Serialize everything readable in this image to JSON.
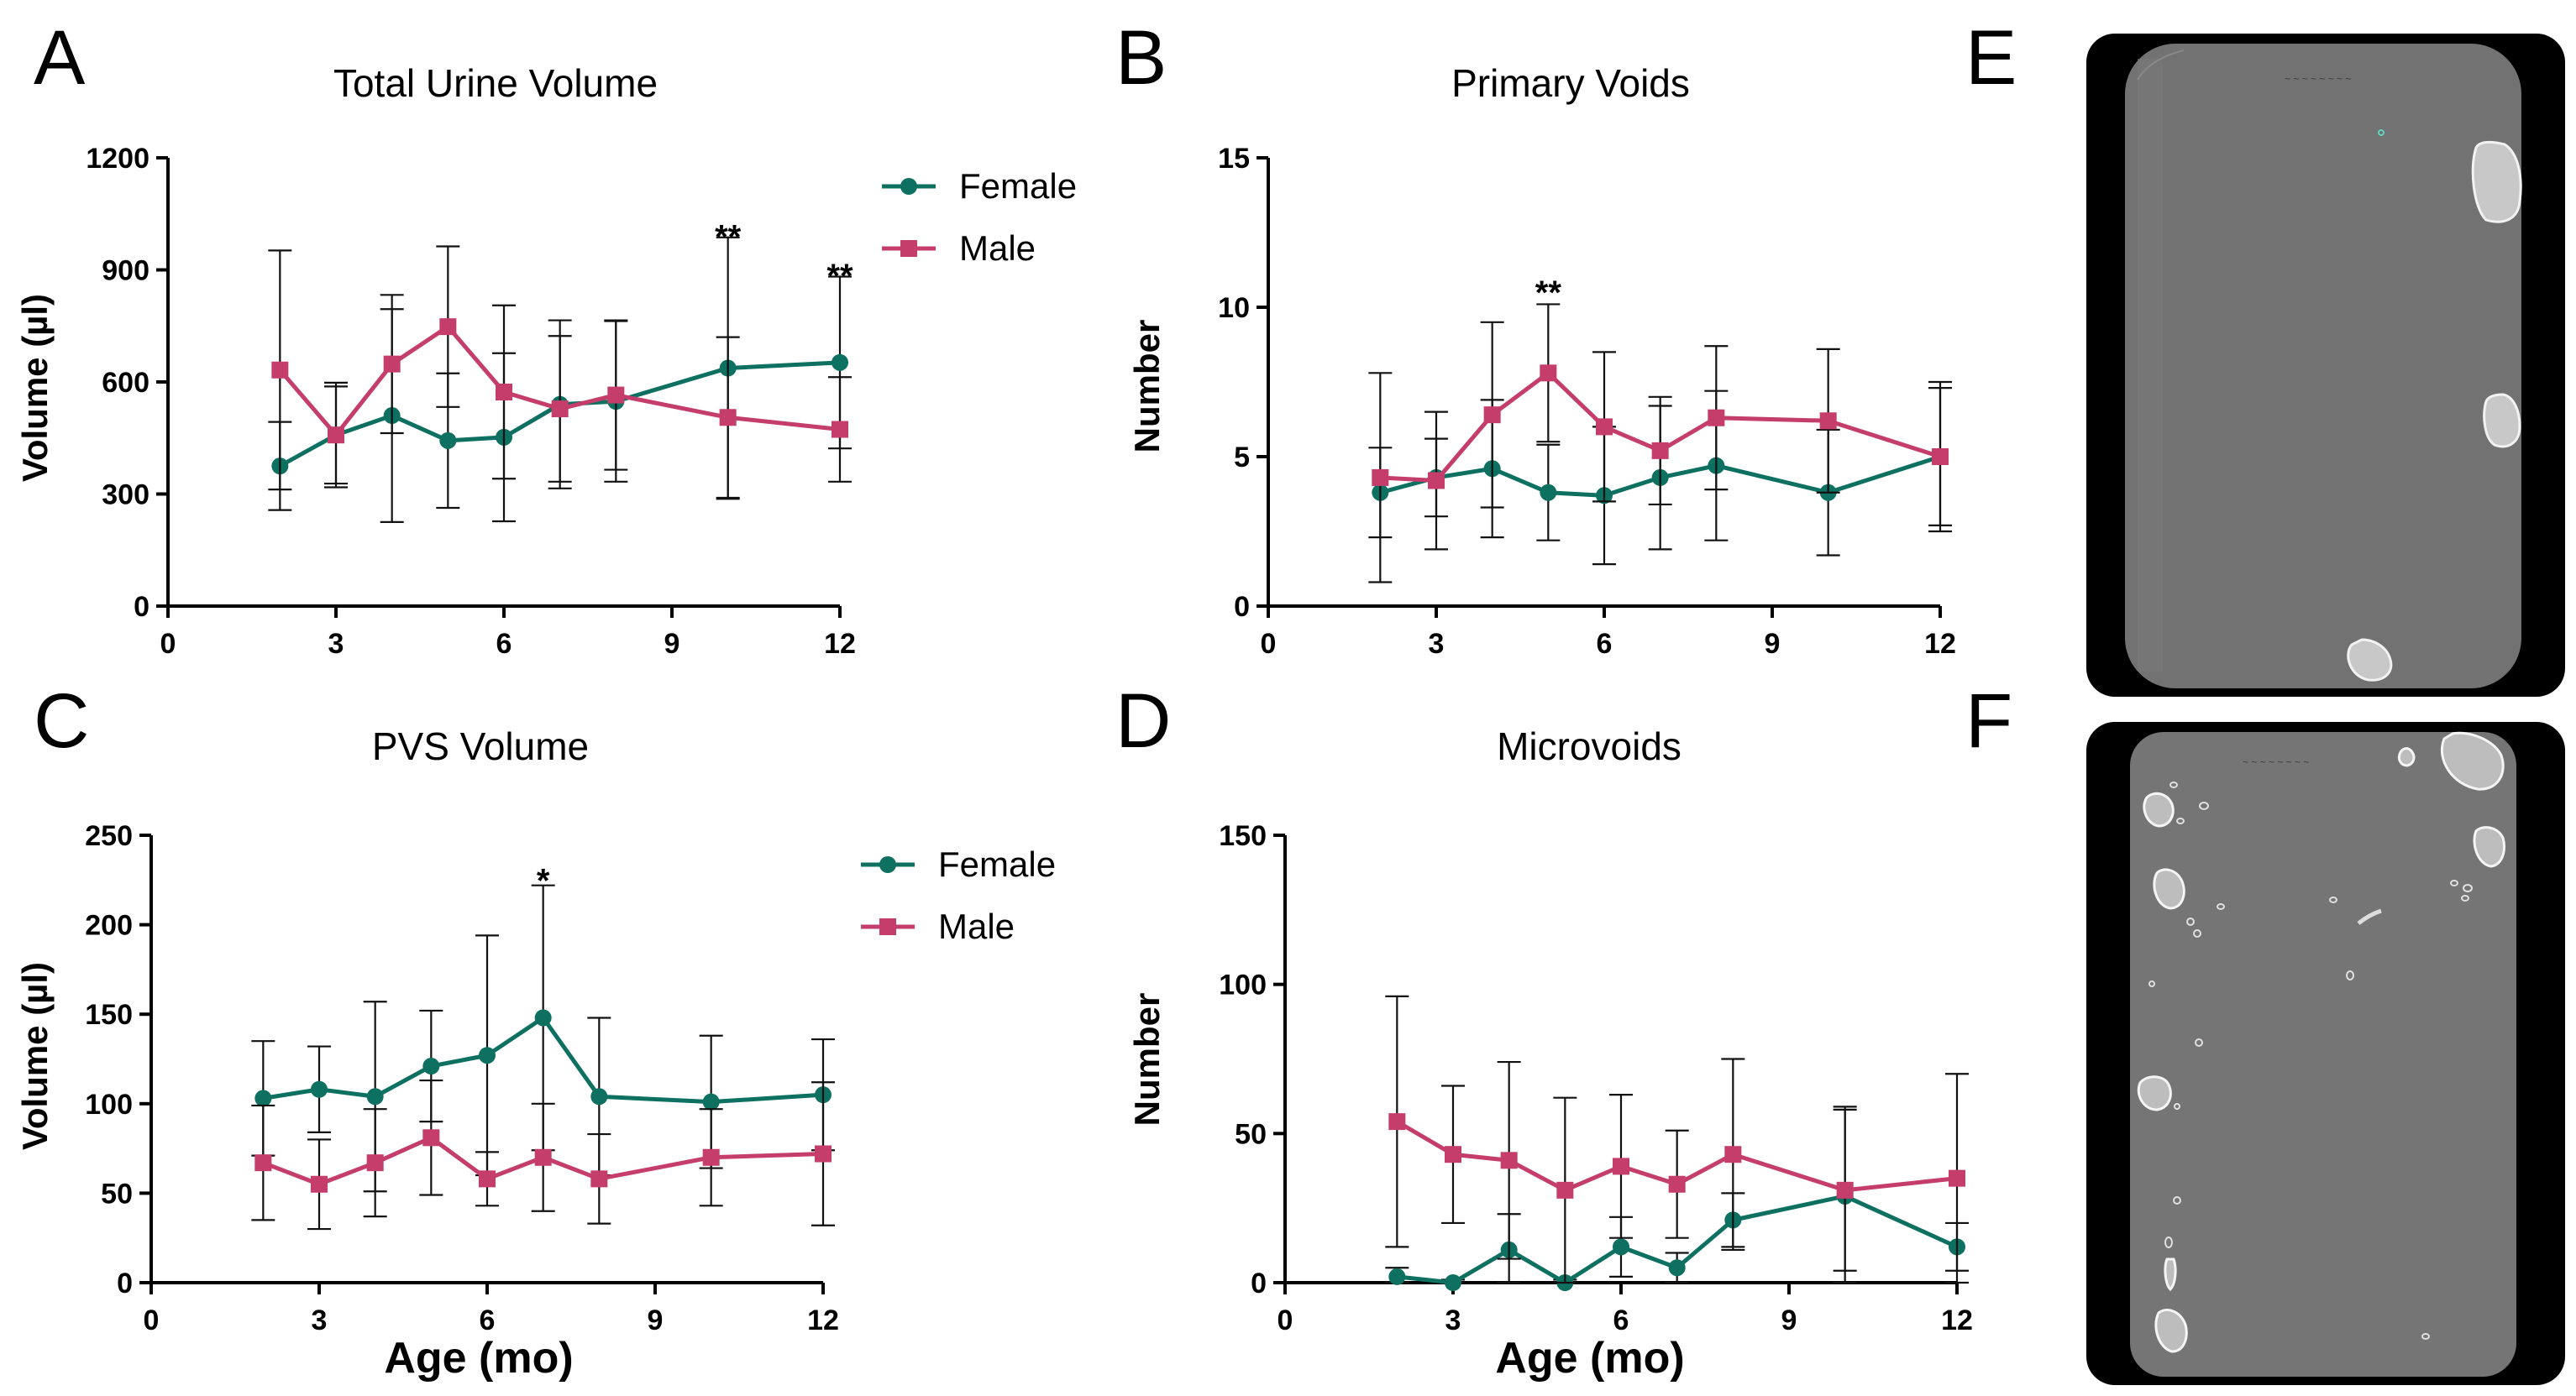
{
  "colors": {
    "female": "#0e7060",
    "male": "#c53d6b"
  },
  "image_panels": [
    {
      "label": "E"
    },
    {
      "label": "F"
    }
  ],
  "chart_data": [
    {
      "panel": "A",
      "type": "line",
      "title": "Total Urine Volume",
      "xlabel": "",
      "ylabel": "Volume (µl)",
      "xlim": [
        0,
        12
      ],
      "ylim": [
        0,
        1200
      ],
      "xticks": [
        0,
        3,
        6,
        9,
        12
      ],
      "yticks": [
        0,
        300,
        600,
        900,
        1200
      ],
      "x": [
        2,
        3,
        4,
        5,
        6,
        7,
        8,
        10,
        12
      ],
      "legend": {
        "placement": "right",
        "entries": [
          "Female",
          "Male"
        ]
      },
      "annotations": [
        {
          "x": 10,
          "y": 990,
          "text": "**"
        },
        {
          "x": 12,
          "y": 885,
          "text": "**"
        }
      ],
      "series": [
        {
          "name": "Female",
          "color_key": "female",
          "marker": "circle",
          "values": [
            375,
            458,
            510,
            443,
            452,
            540,
            548,
            637,
            652
          ],
          "error": [
            118,
            140,
            285,
            180,
            225,
            225,
            215,
            350,
            230
          ]
        },
        {
          "name": "Male",
          "color_key": "male",
          "marker": "square",
          "values": [
            632,
            458,
            648,
            748,
            573,
            528,
            565,
            505,
            473
          ],
          "error": [
            320,
            130,
            185,
            215,
            232,
            195,
            200,
            215,
            140
          ]
        }
      ]
    },
    {
      "panel": "B",
      "type": "line",
      "title": "Primary Voids",
      "xlabel": "",
      "ylabel": "Number",
      "xlim": [
        0,
        12
      ],
      "ylim": [
        0,
        15
      ],
      "xticks": [
        0,
        3,
        6,
        9,
        12
      ],
      "yticks": [
        0,
        5,
        10,
        15
      ],
      "x": [
        2,
        3,
        4,
        5,
        6,
        7,
        8,
        10,
        12
      ],
      "legend": null,
      "annotations": [
        {
          "x": 5,
          "y": 10.5,
          "text": "**"
        }
      ],
      "series": [
        {
          "name": "Female",
          "color_key": "female",
          "marker": "circle",
          "values": [
            3.8,
            4.3,
            4.6,
            3.8,
            3.7,
            4.3,
            4.7,
            3.8,
            5.0
          ],
          "error": [
            1.5,
            1.3,
            2.3,
            1.6,
            2.3,
            2.4,
            2.5,
            2.1,
            2.5
          ]
        },
        {
          "name": "Male",
          "color_key": "male",
          "marker": "square",
          "values": [
            4.3,
            4.2,
            6.4,
            7.8,
            6.0,
            5.2,
            6.3,
            6.2,
            5.0
          ],
          "error": [
            3.5,
            2.3,
            3.1,
            2.3,
            2.5,
            1.8,
            2.4,
            2.4,
            2.3
          ]
        }
      ]
    },
    {
      "panel": "C",
      "type": "line",
      "title": "PVS Volume",
      "xlabel": "Age (mo)",
      "ylabel": "Volume (µl)",
      "xlim": [
        0,
        12
      ],
      "ylim": [
        0,
        250
      ],
      "xticks": [
        0,
        3,
        6,
        9,
        12
      ],
      "yticks": [
        0,
        50,
        100,
        150,
        200,
        250
      ],
      "x": [
        2,
        3,
        4,
        5,
        6,
        7,
        8,
        10,
        12
      ],
      "legend": {
        "placement": "right",
        "entries": [
          "Female",
          "Male"
        ]
      },
      "annotations": [
        {
          "x": 7,
          "y": 225,
          "text": "*"
        }
      ],
      "series": [
        {
          "name": "Female",
          "color_key": "female",
          "marker": "circle",
          "values": [
            103,
            108,
            104,
            121,
            127,
            148,
            104,
            101,
            105
          ],
          "error": [
            32,
            24,
            53,
            31,
            67,
            74,
            44,
            37,
            31
          ]
        },
        {
          "name": "Male",
          "color_key": "male",
          "marker": "square",
          "values": [
            67,
            55,
            67,
            81,
            58,
            70,
            58,
            70,
            72
          ],
          "error": [
            32,
            25,
            30,
            32,
            15,
            30,
            25,
            27,
            40
          ]
        }
      ]
    },
    {
      "panel": "D",
      "type": "line",
      "title": "Microvoids",
      "xlabel": "Age (mo)",
      "ylabel": "Number",
      "xlim": [
        0,
        12
      ],
      "ylim": [
        0,
        150
      ],
      "xticks": [
        0,
        3,
        6,
        9,
        12
      ],
      "yticks": [
        0,
        50,
        100,
        150
      ],
      "x": [
        2,
        3,
        4,
        5,
        6,
        7,
        8,
        10,
        12
      ],
      "legend": null,
      "annotations": [],
      "series": [
        {
          "name": "Female",
          "color_key": "female",
          "marker": "circle",
          "values": [
            2,
            0,
            11,
            0,
            12,
            5,
            21,
            29,
            12
          ],
          "error": [
            3,
            1,
            12,
            1,
            10,
            5,
            9,
            30,
            8
          ]
        },
        {
          "name": "Male",
          "color_key": "male",
          "marker": "square",
          "values": [
            54,
            43,
            41,
            31,
            39,
            33,
            43,
            31,
            35
          ],
          "error": [
            42,
            23,
            33,
            31,
            24,
            18,
            32,
            27,
            35
          ]
        }
      ]
    }
  ]
}
